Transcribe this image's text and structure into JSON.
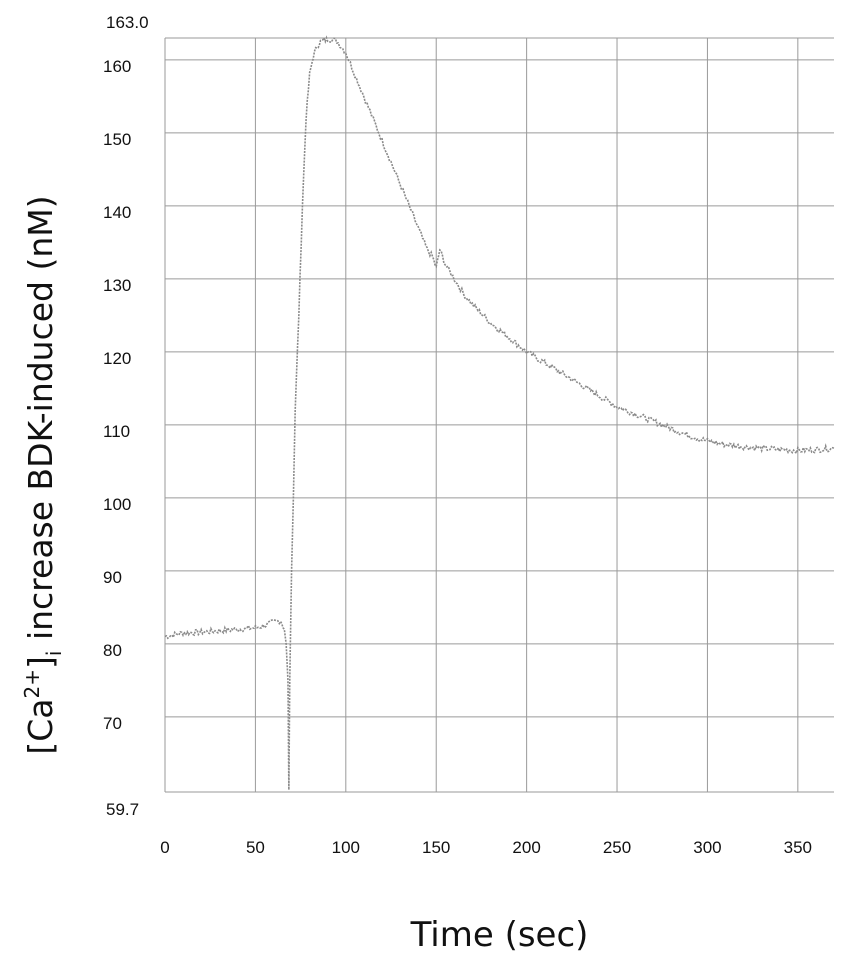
{
  "chart_data": {
    "type": "line",
    "title": "",
    "xlabel": "Time (sec)",
    "ylabel_main": "[Ca",
    "ylabel_sup": "2+",
    "ylabel_close": "]",
    "ylabel_sub": "i",
    "ylabel_rest": " increase BDK-induced (nM)",
    "xlim": [
      0,
      370
    ],
    "ylim": [
      59.7,
      163.0
    ],
    "x_ticks": [
      0,
      50,
      100,
      150,
      200,
      250,
      300,
      350
    ],
    "y_ticks": [
      70,
      80,
      90,
      100,
      110,
      120,
      130,
      140,
      150,
      160
    ],
    "y_extent_labels": [
      "163.0",
      "59.7"
    ],
    "grid": true,
    "line_color": "#8a8a8a",
    "grid_color": "#9a9a9a",
    "series": [
      {
        "x": [
          0,
          10,
          20,
          30,
          40,
          50,
          55,
          60,
          64,
          66,
          67,
          68,
          68.5,
          69,
          70,
          71,
          72,
          74,
          76,
          78,
          80,
          82,
          84,
          86,
          88,
          90,
          92,
          95,
          100,
          105,
          110,
          115,
          120,
          125,
          130,
          135,
          140,
          145,
          148,
          150,
          152,
          155,
          160,
          165,
          170,
          180,
          190,
          200,
          210,
          220,
          230,
          240,
          250,
          260,
          270,
          280,
          290,
          300,
          310,
          320,
          330,
          340,
          350,
          360,
          370
        ],
        "y": [
          81,
          81.5,
          81.6,
          81.8,
          82,
          82.2,
          82.5,
          83,
          83.2,
          82,
          80,
          75,
          60,
          75,
          90,
          100,
          112,
          125,
          140,
          152,
          158,
          160.5,
          161.8,
          162.5,
          162.7,
          162.8,
          162.8,
          162.6,
          161,
          158,
          155,
          152,
          149,
          146,
          143,
          140,
          137,
          134,
          133,
          131.5,
          134,
          132,
          130,
          128,
          126.5,
          124,
          122,
          120,
          118.5,
          117,
          115.5,
          114,
          112.5,
          111.5,
          110.5,
          109.5,
          108.5,
          107.8,
          107.3,
          107,
          106.8,
          106.6,
          106.5,
          106.6,
          106.8
        ]
      }
    ]
  }
}
